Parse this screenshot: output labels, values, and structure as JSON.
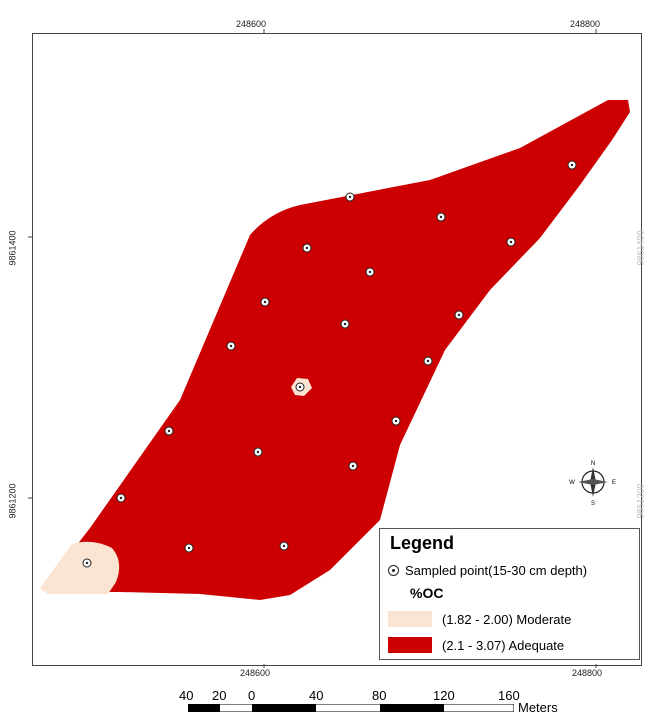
{
  "axes": {
    "top_ticks": [
      "248600",
      "248800"
    ],
    "bottom_ticks": [
      "248600",
      "248800"
    ],
    "left_ticks": [
      "9861400",
      "9861200"
    ],
    "right_ticks": [
      "9861400",
      "9861200"
    ]
  },
  "legend": {
    "title": "Legend",
    "point_label": "Sampled point(15-30 cm depth)",
    "variable": "%OC",
    "classes": [
      {
        "label": "(1.82 - 2.00) Moderate",
        "color": "#fbe4d2"
      },
      {
        "label": "(2.1 - 3.07) Adequate",
        "color": "#cc0000"
      }
    ]
  },
  "scale_bar": {
    "labels": [
      "40",
      "20",
      "0",
      "40",
      "80",
      "120",
      "160"
    ],
    "unit": "Meters"
  },
  "compass": {
    "n": "N",
    "s": "S",
    "e": "E",
    "w": "W"
  }
}
